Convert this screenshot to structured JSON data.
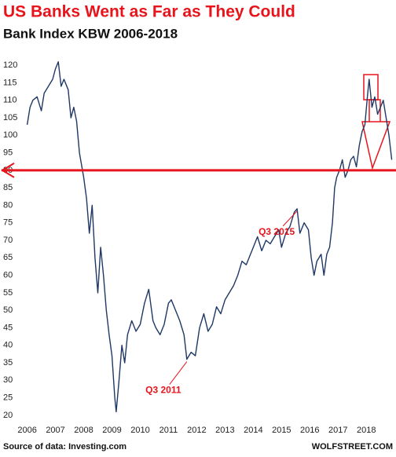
{
  "chart_data": {
    "type": "line",
    "title": "US Banks Went as Far as They Could",
    "subtitle": "Bank Index KBW 2006-2018",
    "source": "Source of data: Investing.com",
    "brand": "WOLFSTREET.COM",
    "annotations": [
      {
        "text": "Q3 2011",
        "x": 2011.65,
        "y": 36
      },
      {
        "text": "Q3 2015",
        "x": 2015.55,
        "y": 79
      }
    ],
    "reference_line": 90,
    "color": "#1f3864",
    "reference_color": "#e8141c",
    "xlim": [
      2005.9,
      2019.05
    ],
    "xticks": [
      2006,
      2007,
      2008,
      2009,
      2010,
      2011,
      2012,
      2013,
      2014,
      2015,
      2016,
      2017,
      2018
    ],
    "ylim": [
      17.5,
      122.5
    ],
    "yticks": [
      20,
      25,
      30,
      35,
      40,
      45,
      50,
      55,
      60,
      65,
      70,
      75,
      80,
      85,
      90,
      95,
      100,
      105,
      110,
      115,
      120
    ],
    "series": [
      {
        "name": "KBW Bank Index",
        "color": "#1f3864",
        "x": [
          2006.0,
          2006.1,
          2006.2,
          2006.35,
          2006.5,
          2006.6,
          2006.75,
          2006.9,
          2007.0,
          2007.1,
          2007.2,
          2007.3,
          2007.45,
          2007.55,
          2007.65,
          2007.75,
          2007.85,
          2008.0,
          2008.1,
          2008.2,
          2008.3,
          2008.4,
          2008.5,
          2008.6,
          2008.7,
          2008.8,
          2008.9,
          2009.0,
          2009.1,
          2009.15,
          2009.25,
          2009.35,
          2009.45,
          2009.55,
          2009.7,
          2009.85,
          2010.0,
          2010.15,
          2010.3,
          2010.45,
          2010.55,
          2010.7,
          2010.85,
          2011.0,
          2011.1,
          2011.25,
          2011.4,
          2011.55,
          2011.65,
          2011.8,
          2011.95,
          2012.1,
          2012.25,
          2012.4,
          2012.55,
          2012.7,
          2012.85,
          2013.0,
          2013.15,
          2013.3,
          2013.45,
          2013.6,
          2013.75,
          2013.9,
          2014.0,
          2014.15,
          2014.3,
          2014.45,
          2014.6,
          2014.75,
          2014.9,
          2015.0,
          2015.15,
          2015.3,
          2015.45,
          2015.55,
          2015.65,
          2015.8,
          2015.95,
          2016.05,
          2016.15,
          2016.25,
          2016.4,
          2016.5,
          2016.6,
          2016.7,
          2016.8,
          2016.88,
          2016.95,
          2017.05,
          2017.15,
          2017.25,
          2017.35,
          2017.45,
          2017.55,
          2017.65,
          2017.75,
          2017.85,
          2017.95,
          2018.05,
          2018.1,
          2018.2,
          2018.3,
          2018.4,
          2018.5,
          2018.6,
          2018.7,
          2018.8,
          2018.9
        ],
        "values": [
          103,
          108,
          110,
          111,
          107,
          112,
          114,
          116,
          119,
          121,
          114,
          116,
          113,
          105,
          108,
          104,
          95,
          88,
          82,
          72,
          80,
          65,
          55,
          68,
          60,
          50,
          43,
          37,
          25,
          21,
          30,
          40,
          35,
          43,
          47,
          44,
          46,
          52,
          56,
          47,
          45,
          43,
          46,
          52,
          53,
          50,
          47,
          43,
          36,
          38,
          37,
          45,
          49,
          44,
          46,
          51,
          49,
          53,
          55,
          57,
          60,
          64,
          63,
          66,
          68,
          71,
          67,
          70,
          69,
          71,
          73,
          68,
          72,
          74,
          78,
          79,
          72,
          75,
          73,
          65,
          60,
          64,
          66,
          60,
          66,
          68,
          75,
          85,
          88,
          90,
          93,
          88,
          90,
          93,
          94,
          91,
          97,
          101,
          103,
          112,
          116,
          108,
          111,
          106,
          108,
          110,
          105,
          100,
          93
        ]
      }
    ]
  }
}
